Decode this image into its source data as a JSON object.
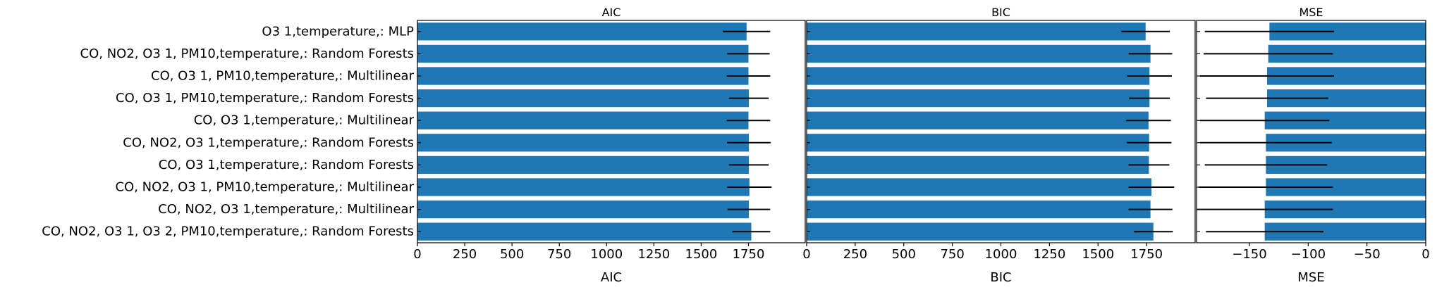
{
  "chart_data": [
    {
      "type": "bar",
      "orientation": "horizontal",
      "title": "AIC",
      "xlabel": "AIC",
      "ylabel": "",
      "xlim": [
        0,
        2050
      ],
      "xticks": [
        0,
        250,
        500,
        750,
        1000,
        1250,
        1500,
        1750
      ],
      "tick_labels": [
        "0",
        "250",
        "500",
        "750",
        "1000",
        "1250",
        "1500",
        "1750"
      ],
      "categories": [
        "O3 1,temperature,: MLP",
        "CO, NO2, O3 1, PM10,temperature,: Random Forests",
        "CO, O3 1, PM10,temperature,: Multilinear",
        "CO, O3 1, PM10,temperature,: Random Forests",
        "CO, O3 1,temperature,: Multilinear",
        "CO, NO2, O3 1,temperature,: Random Forests",
        "CO, O3 1,temperature,: Random Forests",
        "CO, NO2, O3 1, PM10,temperature,: Multilinear",
        "CO, NO2, O3 1,temperature,: Multilinear",
        "CO, NO2, O3 1, O3 2, PM10,temperature,: Random Forests"
      ],
      "values": [
        1740,
        1750,
        1750,
        1752,
        1750,
        1752,
        1752,
        1755,
        1752,
        1765
      ],
      "errors": [
        125,
        112,
        115,
        105,
        115,
        115,
        105,
        117,
        113,
        100
      ],
      "color": "#1f77b4",
      "grid": false
    },
    {
      "type": "bar",
      "orientation": "horizontal",
      "title": "BIC",
      "xlabel": "BIC",
      "ylabel": "",
      "xlim": [
        0,
        2000
      ],
      "xticks": [
        0,
        250,
        500,
        750,
        1000,
        1250,
        1500,
        1750
      ],
      "tick_labels": [
        "0",
        "250",
        "500",
        "750",
        "1000",
        "1250",
        "1500",
        "1750"
      ],
      "values": [
        1745,
        1770,
        1765,
        1765,
        1760,
        1763,
        1762,
        1775,
        1770,
        1785
      ],
      "errors": [
        125,
        112,
        115,
        105,
        115,
        115,
        105,
        117,
        113,
        100
      ],
      "color": "#1f77b4",
      "grid": false
    },
    {
      "type": "bar",
      "orientation": "horizontal",
      "title": "MSE",
      "xlabel": "MSE",
      "ylabel": "",
      "xlim": [
        -195,
        0
      ],
      "xticks": [
        -150,
        -100,
        -50,
        0
      ],
      "tick_labels": [
        "−150",
        "−100",
        "−50",
        "0"
      ],
      "values": [
        -133,
        -134,
        -135,
        -135,
        -137,
        -136,
        -136,
        -136,
        -137,
        -137
      ],
      "errors": [
        55,
        55,
        57,
        52,
        55,
        56,
        52,
        57,
        58,
        50
      ],
      "color": "#1f77b4",
      "grid": false
    }
  ]
}
